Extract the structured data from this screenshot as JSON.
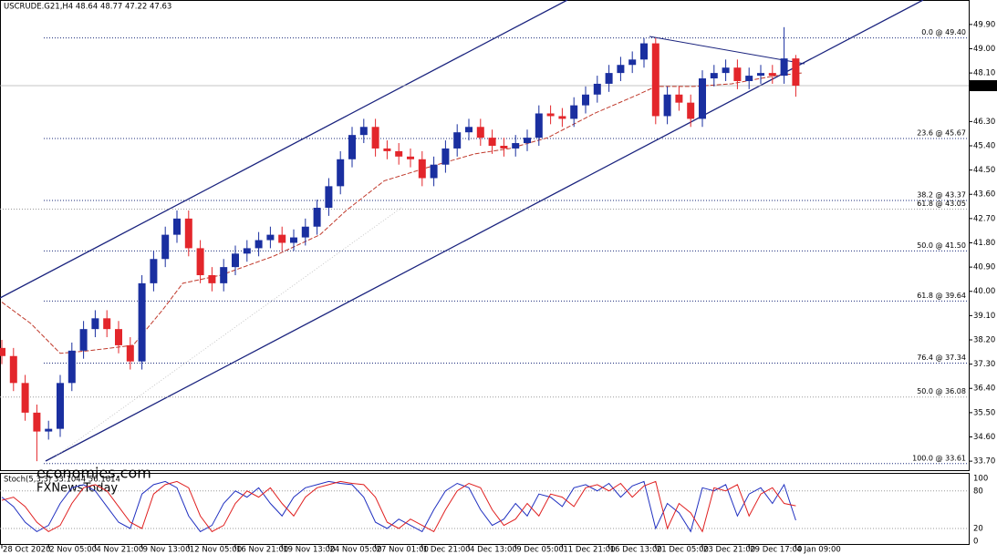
{
  "header": "USCRUDE.G21,H4  48.64 48.77 47.22 47.63",
  "chart_data": {
    "type": "candlestick",
    "x": [
      0,
      4,
      8,
      12,
      16,
      20,
      24,
      28,
      32,
      36,
      40,
      44,
      48,
      52,
      56,
      60,
      64,
      68,
      72,
      76,
      80,
      84,
      88,
      92,
      96,
      100,
      104,
      108,
      112,
      116,
      120,
      124,
      128,
      132,
      136,
      140,
      144,
      148,
      152,
      156,
      160,
      164,
      168,
      172,
      176,
      180,
      184,
      188,
      192,
      196,
      200,
      204,
      208,
      212,
      216,
      220,
      224,
      228,
      232,
      236,
      240,
      244,
      248,
      252,
      256,
      260,
      264,
      268,
      272
    ],
    "open": [
      37.9,
      37.6,
      36.6,
      35.5,
      34.8,
      34.9,
      36.6,
      37.8,
      38.6,
      39.0,
      38.6,
      38.0,
      37.4,
      40.3,
      41.2,
      42.1,
      42.7,
      41.6,
      40.6,
      40.3,
      40.9,
      41.4,
      41.6,
      41.9,
      42.1,
      41.8,
      42.0,
      42.4,
      43.1,
      43.9,
      44.9,
      45.8,
      46.1,
      45.3,
      45.2,
      45.0,
      44.9,
      44.2,
      44.7,
      45.3,
      45.9,
      46.1,
      45.7,
      45.4,
      45.3,
      45.5,
      45.7,
      46.6,
      46.5,
      46.4,
      46.9,
      47.3,
      47.7,
      48.1,
      48.4,
      48.6,
      49.2,
      46.5,
      47.3,
      47.0,
      46.4,
      47.9,
      48.1,
      48.3,
      47.8,
      48.0,
      48.1,
      48.0,
      48.64
    ],
    "high": [
      38.2,
      37.9,
      36.9,
      35.8,
      35.2,
      36.9,
      38.1,
      38.9,
      39.3,
      39.3,
      38.9,
      38.3,
      40.6,
      41.5,
      42.4,
      43.0,
      43.0,
      41.9,
      40.9,
      41.2,
      41.7,
      41.9,
      42.2,
      42.4,
      42.4,
      42.3,
      42.7,
      43.4,
      44.2,
      45.2,
      46.1,
      46.4,
      46.4,
      45.6,
      45.5,
      45.3,
      45.2,
      45.0,
      45.6,
      46.2,
      46.4,
      46.4,
      46.0,
      45.7,
      45.8,
      46.0,
      46.9,
      46.9,
      46.8,
      47.2,
      47.6,
      48.0,
      48.4,
      48.7,
      48.9,
      49.4,
      49.4,
      47.6,
      47.6,
      47.3,
      48.2,
      48.4,
      48.6,
      48.6,
      48.3,
      48.4,
      48.4,
      49.8,
      48.77
    ],
    "low": [
      37.3,
      36.3,
      35.2,
      33.7,
      34.5,
      34.6,
      36.3,
      37.5,
      38.3,
      38.3,
      37.7,
      37.1,
      37.1,
      40.0,
      40.9,
      41.8,
      41.3,
      40.3,
      40.0,
      40.0,
      40.6,
      41.1,
      41.3,
      41.6,
      41.5,
      41.5,
      41.7,
      42.1,
      42.8,
      43.6,
      44.6,
      45.5,
      45.0,
      44.9,
      44.7,
      44.6,
      43.9,
      43.9,
      44.4,
      45.0,
      45.6,
      45.4,
      45.1,
      45.0,
      45.0,
      45.2,
      45.4,
      46.2,
      46.1,
      46.1,
      46.6,
      47.0,
      47.4,
      47.8,
      48.1,
      48.3,
      46.2,
      46.2,
      46.7,
      46.1,
      46.1,
      47.6,
      47.8,
      47.5,
      47.5,
      47.7,
      47.7,
      47.7,
      47.22
    ],
    "close": [
      37.6,
      36.6,
      35.5,
      34.8,
      34.9,
      36.6,
      37.8,
      38.6,
      39.0,
      38.6,
      38.0,
      37.4,
      40.3,
      41.2,
      42.1,
      42.7,
      41.6,
      40.6,
      40.3,
      40.9,
      41.4,
      41.6,
      41.9,
      42.1,
      41.8,
      42.0,
      42.4,
      43.1,
      43.9,
      44.9,
      45.8,
      46.1,
      45.3,
      45.2,
      45.0,
      44.9,
      44.2,
      44.7,
      45.3,
      45.9,
      46.1,
      45.7,
      45.4,
      45.3,
      45.5,
      45.7,
      46.6,
      46.5,
      46.4,
      46.9,
      47.3,
      47.7,
      48.1,
      48.4,
      48.6,
      49.2,
      46.5,
      47.3,
      47.0,
      46.4,
      47.9,
      48.1,
      48.3,
      47.8,
      48.0,
      48.1,
      48.0,
      48.64,
      47.63
    ],
    "up_color": "#1a2fa0",
    "down_color": "#e3262b",
    "xlim": [
      -0.625,
      331.25
    ],
    "xticks": [
      {
        "value": 0,
        "label": "28 Oct 2020"
      },
      {
        "value": 16,
        "label": "2 Nov 05:00"
      },
      {
        "value": 32,
        "label": "4 Nov 21:00"
      },
      {
        "value": 48,
        "label": "9 Nov 13:00"
      },
      {
        "value": 64,
        "label": "12 Nov 05:00"
      },
      {
        "value": 80,
        "label": "16 Nov 21:00"
      },
      {
        "value": 96,
        "label": "19 Nov 13:00"
      },
      {
        "value": 112,
        "label": "24 Nov 05:00"
      },
      {
        "value": 128,
        "label": "27 Nov 01:00"
      },
      {
        "value": 144,
        "label": "1 Dec 21:00"
      },
      {
        "value": 160,
        "label": "4 Dec 13:00"
      },
      {
        "value": 176,
        "label": "9 Dec 05:00"
      },
      {
        "value": 192,
        "label": "11 Dec 21:00"
      },
      {
        "value": 208,
        "label": "16 Dec 13:00"
      },
      {
        "value": 224,
        "label": "21 Dec 05:00"
      },
      {
        "value": 240,
        "label": "23 Dec 21:00"
      },
      {
        "value": 256,
        "label": "29 Dec 17:00"
      },
      {
        "value": 272,
        "label": "4 Jan 09:00"
      }
    ],
    "ylim": [
      33.4,
      50.47
    ],
    "yticks": [
      {
        "value": 49.9,
        "label": "49.90"
      },
      {
        "value": 49,
        "label": "49.00"
      },
      {
        "value": 48.1,
        "label": "48.10"
      },
      {
        "value": 46.3,
        "label": "46.30"
      },
      {
        "value": 45.4,
        "label": "45.40"
      },
      {
        "value": 44.5,
        "label": "44.50"
      },
      {
        "value": 43.6,
        "label": "43.60"
      },
      {
        "value": 42.7,
        "label": "42.70"
      },
      {
        "value": 41.8,
        "label": "41.80"
      },
      {
        "value": 40.9,
        "label": "40.90"
      },
      {
        "value": 40,
        "label": "40.00"
      },
      {
        "value": 39.1,
        "label": "39.10"
      },
      {
        "value": 38.2,
        "label": "38.20"
      },
      {
        "value": 37.3,
        "label": "37.30"
      },
      {
        "value": 36.4,
        "label": "36.40"
      },
      {
        "value": 35.5,
        "label": "35.50"
      },
      {
        "value": 34.6,
        "label": "34.60"
      },
      {
        "value": 33.7,
        "label": "33.70"
      }
    ],
    "current_price": 47.63,
    "fibonacci": {
      "color": "#1a2a7a",
      "levels": [
        {
          "value": 49.4,
          "label": "0.0 @ 49.40"
        },
        {
          "value": 45.67,
          "label": "23.6 @ 45.67"
        },
        {
          "value": 43.37,
          "label": "38.2 @ 43.37"
        },
        {
          "value": 41.5,
          "label": "50.0 @ 41.50"
        },
        {
          "value": 39.64,
          "label": "61.8 @ 39.64"
        },
        {
          "value": 37.34,
          "label": "76.4 @ 37.34"
        },
        {
          "value": 33.61,
          "label": "100.0 @ 33.61"
        }
      ]
    },
    "fibonacci_2": {
      "color": "#9a9a9a",
      "levels": [
        {
          "value": 43.05,
          "label": "61.8 @ 43.05"
        },
        {
          "value": 36.08,
          "label": "50.0 @ 36.08"
        }
      ]
    },
    "moving_average": {
      "color": "#c0392b",
      "x": [
        0,
        10,
        20,
        30,
        45,
        55,
        62,
        75,
        93,
        109,
        118,
        131,
        146,
        162,
        174,
        187,
        203,
        218,
        224,
        237,
        250,
        265,
        274
      ],
      "values": [
        39.6,
        38.8,
        37.7,
        37.8,
        38.0,
        39.3,
        40.3,
        40.6,
        41.3,
        42.1,
        43.0,
        44.1,
        44.6,
        45.1,
        45.3,
        45.7,
        46.6,
        47.3,
        47.6,
        47.6,
        47.7,
        48.0,
        48.1
      ]
    },
    "stochastic": {
      "title": "Stoch(5,3,3) 33.1044 56.1614",
      "ylim": [
        0,
        100
      ],
      "yticks": [
        100,
        80,
        20,
        0
      ],
      "series": [
        {
          "color": "#2030c0",
          "values": [
            70,
            55,
            30,
            15,
            25,
            60,
            85,
            90,
            80,
            55,
            30,
            20,
            75,
            90,
            95,
            85,
            40,
            15,
            25,
            60,
            80,
            70,
            85,
            60,
            40,
            70,
            85,
            90,
            95,
            92,
            90,
            70,
            30,
            20,
            35,
            25,
            15,
            50,
            80,
            92,
            85,
            50,
            25,
            35,
            60,
            40,
            75,
            70,
            55,
            85,
            90,
            80,
            92,
            70,
            88,
            95,
            20,
            60,
            45,
            15,
            85,
            80,
            90,
            40,
            75,
            85,
            60,
            90,
            33.1
          ]
        },
        {
          "color": "#e02020",
          "values": [
            65,
            70,
            55,
            30,
            15,
            25,
            60,
            85,
            90,
            80,
            55,
            30,
            20,
            75,
            90,
            95,
            85,
            40,
            15,
            25,
            60,
            80,
            70,
            85,
            60,
            40,
            70,
            85,
            90,
            95,
            92,
            90,
            70,
            30,
            20,
            35,
            25,
            15,
            50,
            80,
            92,
            85,
            50,
            25,
            35,
            60,
            40,
            75,
            70,
            55,
            85,
            90,
            80,
            92,
            70,
            88,
            95,
            20,
            60,
            45,
            15,
            85,
            80,
            90,
            40,
            75,
            85,
            60,
            56.16
          ]
        }
      ]
    },
    "watermark": [
      "economies.com",
      "FXNewsToday"
    ]
  }
}
